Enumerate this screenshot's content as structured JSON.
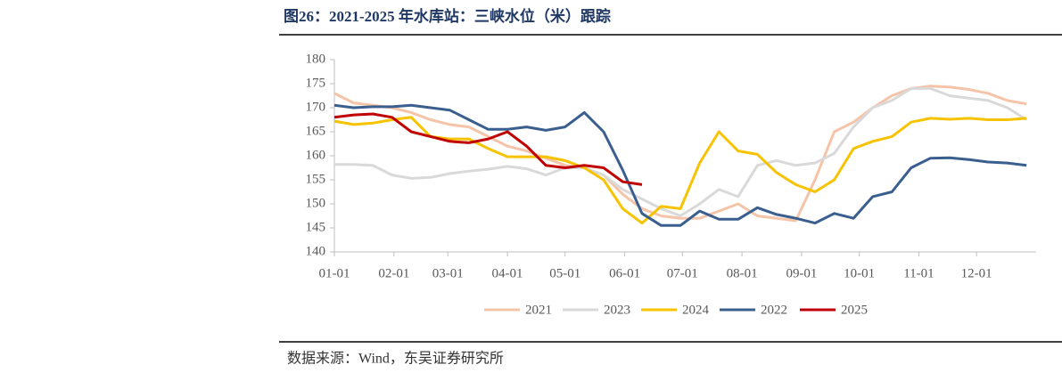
{
  "header": {
    "title": "图26：2021-2025 年水库站：三峡水位（米）跟踪"
  },
  "chart_data": {
    "type": "line",
    "grid": false,
    "x": [
      0,
      10,
      20,
      30,
      40,
      50,
      60,
      70,
      80,
      90,
      100,
      110,
      120,
      130,
      140,
      150,
      160,
      170,
      180,
      190,
      200,
      210,
      220,
      230,
      240,
      250,
      260,
      270,
      280,
      290,
      300,
      310,
      320,
      330,
      340,
      350,
      360
    ],
    "xlim": [
      0,
      365
    ],
    "xticks": [
      {
        "value": 0,
        "label": "01-01"
      },
      {
        "value": 31,
        "label": "02-01"
      },
      {
        "value": 59,
        "label": "03-01"
      },
      {
        "value": 90,
        "label": "04-01"
      },
      {
        "value": 120,
        "label": "05-01"
      },
      {
        "value": 151,
        "label": "06-01"
      },
      {
        "value": 181,
        "label": "07-01"
      },
      {
        "value": 212,
        "label": "08-01"
      },
      {
        "value": 243,
        "label": "09-01"
      },
      {
        "value": 273,
        "label": "10-01"
      },
      {
        "value": 304,
        "label": "11-01"
      },
      {
        "value": 334,
        "label": "12-01"
      }
    ],
    "ylim": [
      140,
      180
    ],
    "yticks": [
      140,
      145,
      150,
      155,
      160,
      165,
      170,
      175,
      180
    ],
    "series": [
      {
        "name": "2021",
        "color": "#f5c4a8",
        "values": [
          173,
          171,
          170.5,
          170,
          169,
          167.5,
          166.5,
          166,
          164,
          162,
          161,
          159.5,
          158,
          157.5,
          156,
          152,
          149,
          147.5,
          147,
          147,
          148.5,
          150,
          147.5,
          147,
          146.5,
          155,
          165,
          167,
          170,
          172.5,
          174,
          174.5,
          174.3,
          173.8,
          173,
          171.5,
          170.8
        ]
      },
      {
        "name": "2023",
        "color": "#d9d9d9",
        "values": [
          158.2,
          158.2,
          158,
          156,
          155.3,
          155.5,
          156.3,
          156.8,
          157.2,
          157.8,
          157.3,
          156,
          157.5,
          157.5,
          156,
          153,
          151,
          149,
          147.5,
          150,
          153,
          151.5,
          158,
          159,
          158,
          158.5,
          160.5,
          166,
          170,
          171.5,
          174,
          174,
          172.5,
          172,
          171.5,
          170,
          167.5
        ]
      },
      {
        "name": "2024",
        "color": "#f7c300",
        "values": [
          167.2,
          166.5,
          166.8,
          167.5,
          168,
          164,
          163.5,
          163.5,
          161.5,
          159.8,
          159.8,
          159.8,
          159,
          157.5,
          155,
          149,
          146,
          149.5,
          149,
          158.5,
          165,
          161,
          160.3,
          156.5,
          154,
          152.5,
          155,
          161.5,
          163,
          164,
          167,
          167.8,
          167.6,
          167.8,
          167.5,
          167.5,
          167.8
        ]
      },
      {
        "name": "2022",
        "color": "#3a5f8f",
        "values": [
          170.5,
          170,
          170.2,
          170.2,
          170.5,
          170,
          169.5,
          167.5,
          165.5,
          165.5,
          166,
          165.3,
          166,
          169,
          165,
          157,
          148,
          145.5,
          145.5,
          148.5,
          146.8,
          146.8,
          149.2,
          147.8,
          147,
          146,
          148,
          147,
          151.5,
          152.5,
          157.5,
          159.5,
          159.6,
          159.2,
          158.7,
          158.5,
          158
        ]
      },
      {
        "name": "2025",
        "color": "#c00000",
        "values": [
          168,
          168.5,
          168.7,
          168,
          165,
          164,
          163,
          162.7,
          163.5,
          165,
          162,
          158,
          157.5,
          158,
          157.5,
          154.6,
          154,
          null,
          null,
          null,
          null,
          null,
          null,
          null,
          null,
          null,
          null,
          null,
          null,
          null,
          null,
          null,
          null,
          null,
          null,
          null,
          null
        ]
      }
    ]
  },
  "footer": {
    "source": "数据来源：Wind，东吴证券研究所"
  }
}
